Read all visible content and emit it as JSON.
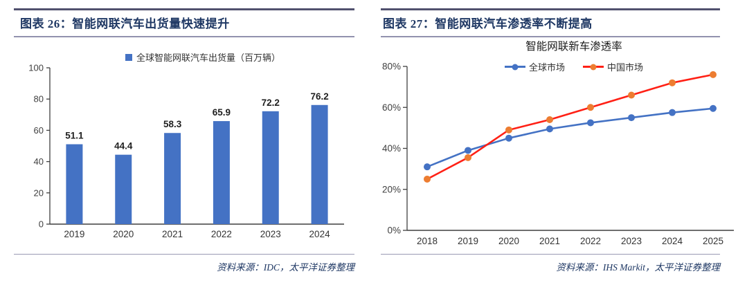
{
  "panels": [
    {
      "header_title": "图表 26：智能网联汽车出货量快速提升",
      "source": "资料来源：IDC，太平洋证券整理"
    },
    {
      "header_title": "图表 27：智能网联汽车渗透率不断提高",
      "source": "资料来源：IHS Markit，太平洋证券整理"
    }
  ],
  "chart_data": [
    {
      "type": "bar",
      "title": "",
      "legend": "全球智能网联汽车出货量（百万辆）",
      "categories": [
        "2019",
        "2020",
        "2021",
        "2022",
        "2023",
        "2024"
      ],
      "values": [
        51.1,
        44.4,
        58.3,
        65.9,
        72.2,
        76.2
      ],
      "xlabel": "",
      "ylabel": "",
      "ylim": [
        0,
        100
      ],
      "yticks": [
        0,
        20,
        40,
        60,
        80,
        100
      ],
      "grid": false,
      "legend_position": "top",
      "value_labels": true,
      "bar_color": "#4472C4"
    },
    {
      "type": "line",
      "title": "智能网联新车渗透率",
      "categories": [
        "2018",
        "2019",
        "2020",
        "2021",
        "2022",
        "2023",
        "2024",
        "2025"
      ],
      "series": [
        {
          "name": "全球市场",
          "line_color": "#4472C4",
          "marker_color": "#4472C4",
          "values": [
            31,
            39,
            45,
            49.5,
            52.5,
            55,
            57.5,
            59.5
          ]
        },
        {
          "name": "中国市场",
          "line_color": "#FF2015",
          "marker_color": "#ED7D31",
          "values": [
            25,
            35.5,
            49,
            54,
            60,
            66,
            72,
            76
          ]
        }
      ],
      "xlabel": "",
      "ylabel": "",
      "ylim": [
        0,
        80
      ],
      "yticks": [
        0,
        20,
        40,
        60,
        80
      ],
      "ytick_labels": [
        "0%",
        "20%",
        "40%",
        "60%",
        "80%"
      ],
      "grid": false,
      "legend_position": "top"
    }
  ],
  "colors": {
    "title_navy": "#1F3864",
    "header_border_dark": "#50506E",
    "header_border_light": "#9191AE",
    "axis_color": "#3F3F3F",
    "tick_text": "#404040",
    "bar_blue": "#4472C4",
    "line_red": "#FF2015",
    "marker_orange": "#ED7D31"
  }
}
